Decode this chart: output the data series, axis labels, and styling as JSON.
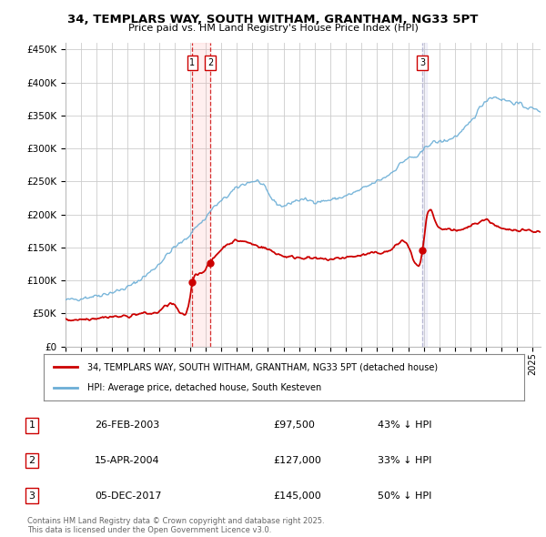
{
  "title": "34, TEMPLARS WAY, SOUTH WITHAM, GRANTHAM, NG33 5PT",
  "subtitle": "Price paid vs. HM Land Registry's House Price Index (HPI)",
  "ylim": [
    0,
    460000
  ],
  "xlim_start": 1995.0,
  "xlim_end": 2025.5,
  "transactions": [
    {
      "num": 1,
      "date_x": 2003.15,
      "price": 97500,
      "label": "1",
      "date_str": "26-FEB-2003",
      "pct": "43%",
      "vline_color": "#cc0000",
      "shade_color": "#ffcccc"
    },
    {
      "num": 2,
      "date_x": 2004.3,
      "price": 127000,
      "label": "2",
      "date_str": "15-APR-2004",
      "pct": "33%",
      "vline_color": "#cc0000",
      "shade_color": "#ffcccc"
    },
    {
      "num": 3,
      "date_x": 2017.92,
      "price": 145000,
      "label": "3",
      "date_str": "05-DEC-2017",
      "pct": "50%",
      "vline_color": "#aaaacc",
      "shade_color": "#ccccff"
    }
  ],
  "hpi_color": "#6baed6",
  "price_color": "#cc0000",
  "background_color": "#ffffff",
  "grid_color": "#cccccc",
  "legend_label_price": "34, TEMPLARS WAY, SOUTH WITHAM, GRANTHAM, NG33 5PT (detached house)",
  "legend_label_hpi": "HPI: Average price, detached house, South Kesteven",
  "footer": "Contains HM Land Registry data © Crown copyright and database right 2025.\nThis data is licensed under the Open Government Licence v3.0."
}
